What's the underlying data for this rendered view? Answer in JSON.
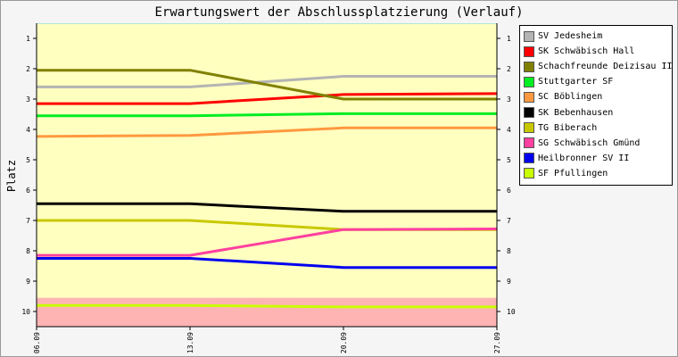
{
  "chart_data": {
    "type": "line",
    "title": "Erwartungswert der Abschlussplatzierung (Verlauf)",
    "xlabel": "",
    "ylabel": "Platz",
    "x": [
      "06.09",
      "13.09",
      "20.09",
      "27.09"
    ],
    "y_ticks": [
      "1",
      "2",
      "3",
      "4",
      "5",
      "6",
      "7",
      "8",
      "9",
      "10"
    ],
    "ylim": [
      0.5,
      10.5
    ],
    "y_inverted": true,
    "grid": false,
    "legend_position": "right",
    "background_bands": [
      {
        "from": 0.5,
        "to": 9.55,
        "color": "#ffffc0"
      },
      {
        "from": 9.55,
        "to": 10.5,
        "color": "#ffb4b4"
      }
    ],
    "series": [
      {
        "name": "SV Jedesheim",
        "color": "#b4b4b4",
        "values": [
          2.6,
          2.6,
          2.25,
          2.25
        ]
      },
      {
        "name": "SK Schwäbisch Hall",
        "color": "#ff0000",
        "values": [
          3.15,
          3.15,
          2.85,
          2.82
        ]
      },
      {
        "name": "Schachfreunde Deizisau II",
        "color": "#808000",
        "values": [
          2.05,
          2.05,
          3.0,
          3.0
        ]
      },
      {
        "name": "Stuttgarter SF",
        "color": "#00ee22",
        "values": [
          3.55,
          3.55,
          3.48,
          3.48
        ]
      },
      {
        "name": "SC Böblingen",
        "color": "#ff9940",
        "values": [
          4.23,
          4.2,
          3.95,
          3.95
        ]
      },
      {
        "name": "SK Bebenhausen",
        "color": "#000000",
        "values": [
          6.45,
          6.45,
          6.7,
          6.7
        ]
      },
      {
        "name": "TG Biberach",
        "color": "#c8c800",
        "values": [
          7.0,
          7.0,
          7.3,
          7.3
        ]
      },
      {
        "name": "SG Schwäbisch Gmünd",
        "color": "#ff40a0",
        "values": [
          8.15,
          8.15,
          7.3,
          7.28
        ]
      },
      {
        "name": "Heilbronner SV II",
        "color": "#0000ee",
        "values": [
          8.25,
          8.25,
          8.55,
          8.55
        ]
      },
      {
        "name": "SF Pfullingen",
        "color": "#c8ff00",
        "values": [
          9.8,
          9.8,
          9.85,
          9.85
        ]
      }
    ]
  }
}
